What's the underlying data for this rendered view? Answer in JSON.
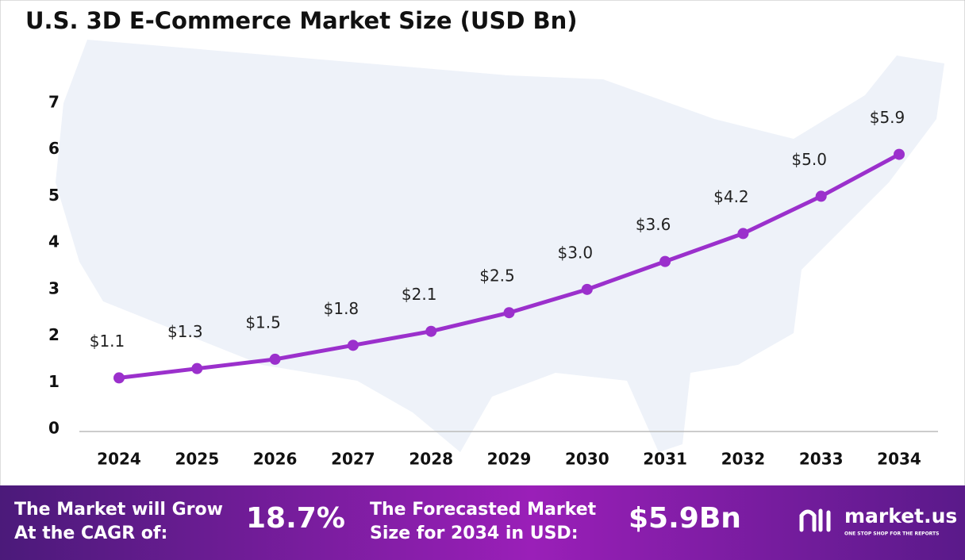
{
  "chart_data": {
    "type": "line",
    "title": "U.S.  3D E-Commerce Market Size (USD Bn)",
    "categories": [
      "2024",
      "2025",
      "2026",
      "2027",
      "2028",
      "2029",
      "2030",
      "2031",
      "2032",
      "2033",
      "2034"
    ],
    "series": [
      {
        "color": "#9b30cc",
        "values": [
          1.1,
          1.3,
          1.5,
          1.8,
          2.1,
          2.5,
          3.0,
          3.6,
          4.2,
          5.0,
          5.9
        ],
        "value_labels": [
          "$1.1",
          "$1.3",
          "$1.5",
          "$1.8",
          "$2.1",
          "$2.5",
          "$3.0",
          "$3.6",
          "$4.2",
          "$5.0",
          "$5.9"
        ]
      }
    ],
    "ylim": [
      0,
      7
    ],
    "yticks": [
      0,
      1,
      2,
      3,
      4,
      5,
      6,
      7
    ],
    "grid": false
  },
  "footer": {
    "cagr_text": [
      "The Market will Grow",
      "At the CAGR of:"
    ],
    "cagr_value": "18.7%",
    "forecast_text": [
      "The Forecasted Market",
      "Size for 2034 in USD:"
    ],
    "forecast_value": "$5.9Bn",
    "brand": "market.us",
    "tagline": "ONE STOP SHOP FOR THE REPORTS"
  }
}
